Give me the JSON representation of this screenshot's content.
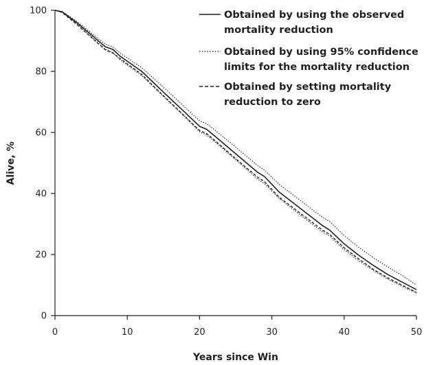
{
  "chart_data": {
    "type": "line",
    "xlabel": "Years since Win",
    "ylabel": "Alive, %",
    "xlim": [
      0,
      50
    ],
    "ylim": [
      0,
      100
    ],
    "xticks": [
      0,
      10,
      20,
      30,
      40,
      50
    ],
    "yticks": [
      0,
      20,
      40,
      60,
      80,
      100
    ],
    "grid": false,
    "legend_position": "top-right",
    "legend": [
      {
        "series": "observed",
        "lines": [
          "Obtained by using the observed",
          "mortality reduction"
        ]
      },
      {
        "series": "ci",
        "lines": [
          "Obtained by using 95% confidence",
          "limits for the mortality reduction"
        ]
      },
      {
        "series": "zero",
        "lines": [
          "Obtained by setting mortality",
          "reduction to zero"
        ]
      }
    ],
    "series": [
      {
        "id": "observed",
        "style": "solid",
        "x": [
          0,
          1,
          3,
          5,
          7,
          8,
          9,
          12,
          15,
          18,
          20,
          21,
          22,
          25,
          28,
          29,
          31,
          34,
          37,
          38,
          40,
          42,
          44,
          46,
          48,
          50
        ],
        "y": [
          100,
          99.5,
          96,
          92,
          88,
          87.2,
          85,
          80,
          73.2,
          66.5,
          62,
          61,
          59,
          53,
          47,
          45.5,
          40.5,
          35,
          29.5,
          28,
          23.5,
          19.8,
          16.5,
          13.5,
          11,
          8.5
        ]
      },
      {
        "id": "ci_upper",
        "style": "dotted",
        "x": [
          0,
          1,
          3,
          5,
          7,
          8,
          9,
          12,
          15,
          18,
          20,
          21,
          22,
          25,
          28,
          29,
          31,
          34,
          37,
          38,
          40,
          42,
          44,
          46,
          48,
          50
        ],
        "y": [
          100,
          99.6,
          96.4,
          92.6,
          88.8,
          88,
          86,
          81.2,
          74.8,
          68.2,
          63.8,
          62.8,
          61,
          55.2,
          49.2,
          47.6,
          43,
          37.6,
          32.2,
          30.8,
          26.2,
          22.4,
          19,
          16,
          13.2,
          10
        ]
      },
      {
        "id": "ci_lower",
        "style": "dotted",
        "x": [
          0,
          1,
          3,
          5,
          7,
          8,
          9,
          12,
          15,
          18,
          20,
          21,
          22,
          25,
          28,
          29,
          31,
          34,
          37,
          38,
          40,
          42,
          44,
          46,
          48,
          50
        ],
        "y": [
          100,
          99.4,
          95.6,
          91.4,
          87.2,
          86.2,
          83.8,
          78.6,
          71.8,
          65,
          60.2,
          59.2,
          57.2,
          51,
          44.8,
          43.2,
          38.4,
          32.8,
          27.4,
          26,
          21.6,
          18,
          14.8,
          12,
          9.6,
          7.4
        ]
      },
      {
        "id": "zero",
        "style": "dashed",
        "x": [
          0,
          1,
          3,
          5,
          7,
          8,
          9,
          12,
          15,
          18,
          20,
          21,
          22,
          25,
          28,
          29,
          31,
          34,
          37,
          38,
          40,
          42,
          44,
          46,
          48,
          50
        ],
        "y": [
          100,
          99.3,
          95.4,
          91.2,
          87,
          86,
          84.2,
          79,
          72,
          65.2,
          60.6,
          59.6,
          57.6,
          51.4,
          45.4,
          43.8,
          38.8,
          33.4,
          28,
          26.6,
          22.2,
          18.6,
          15.2,
          12.4,
          10,
          7.6
        ]
      }
    ]
  }
}
